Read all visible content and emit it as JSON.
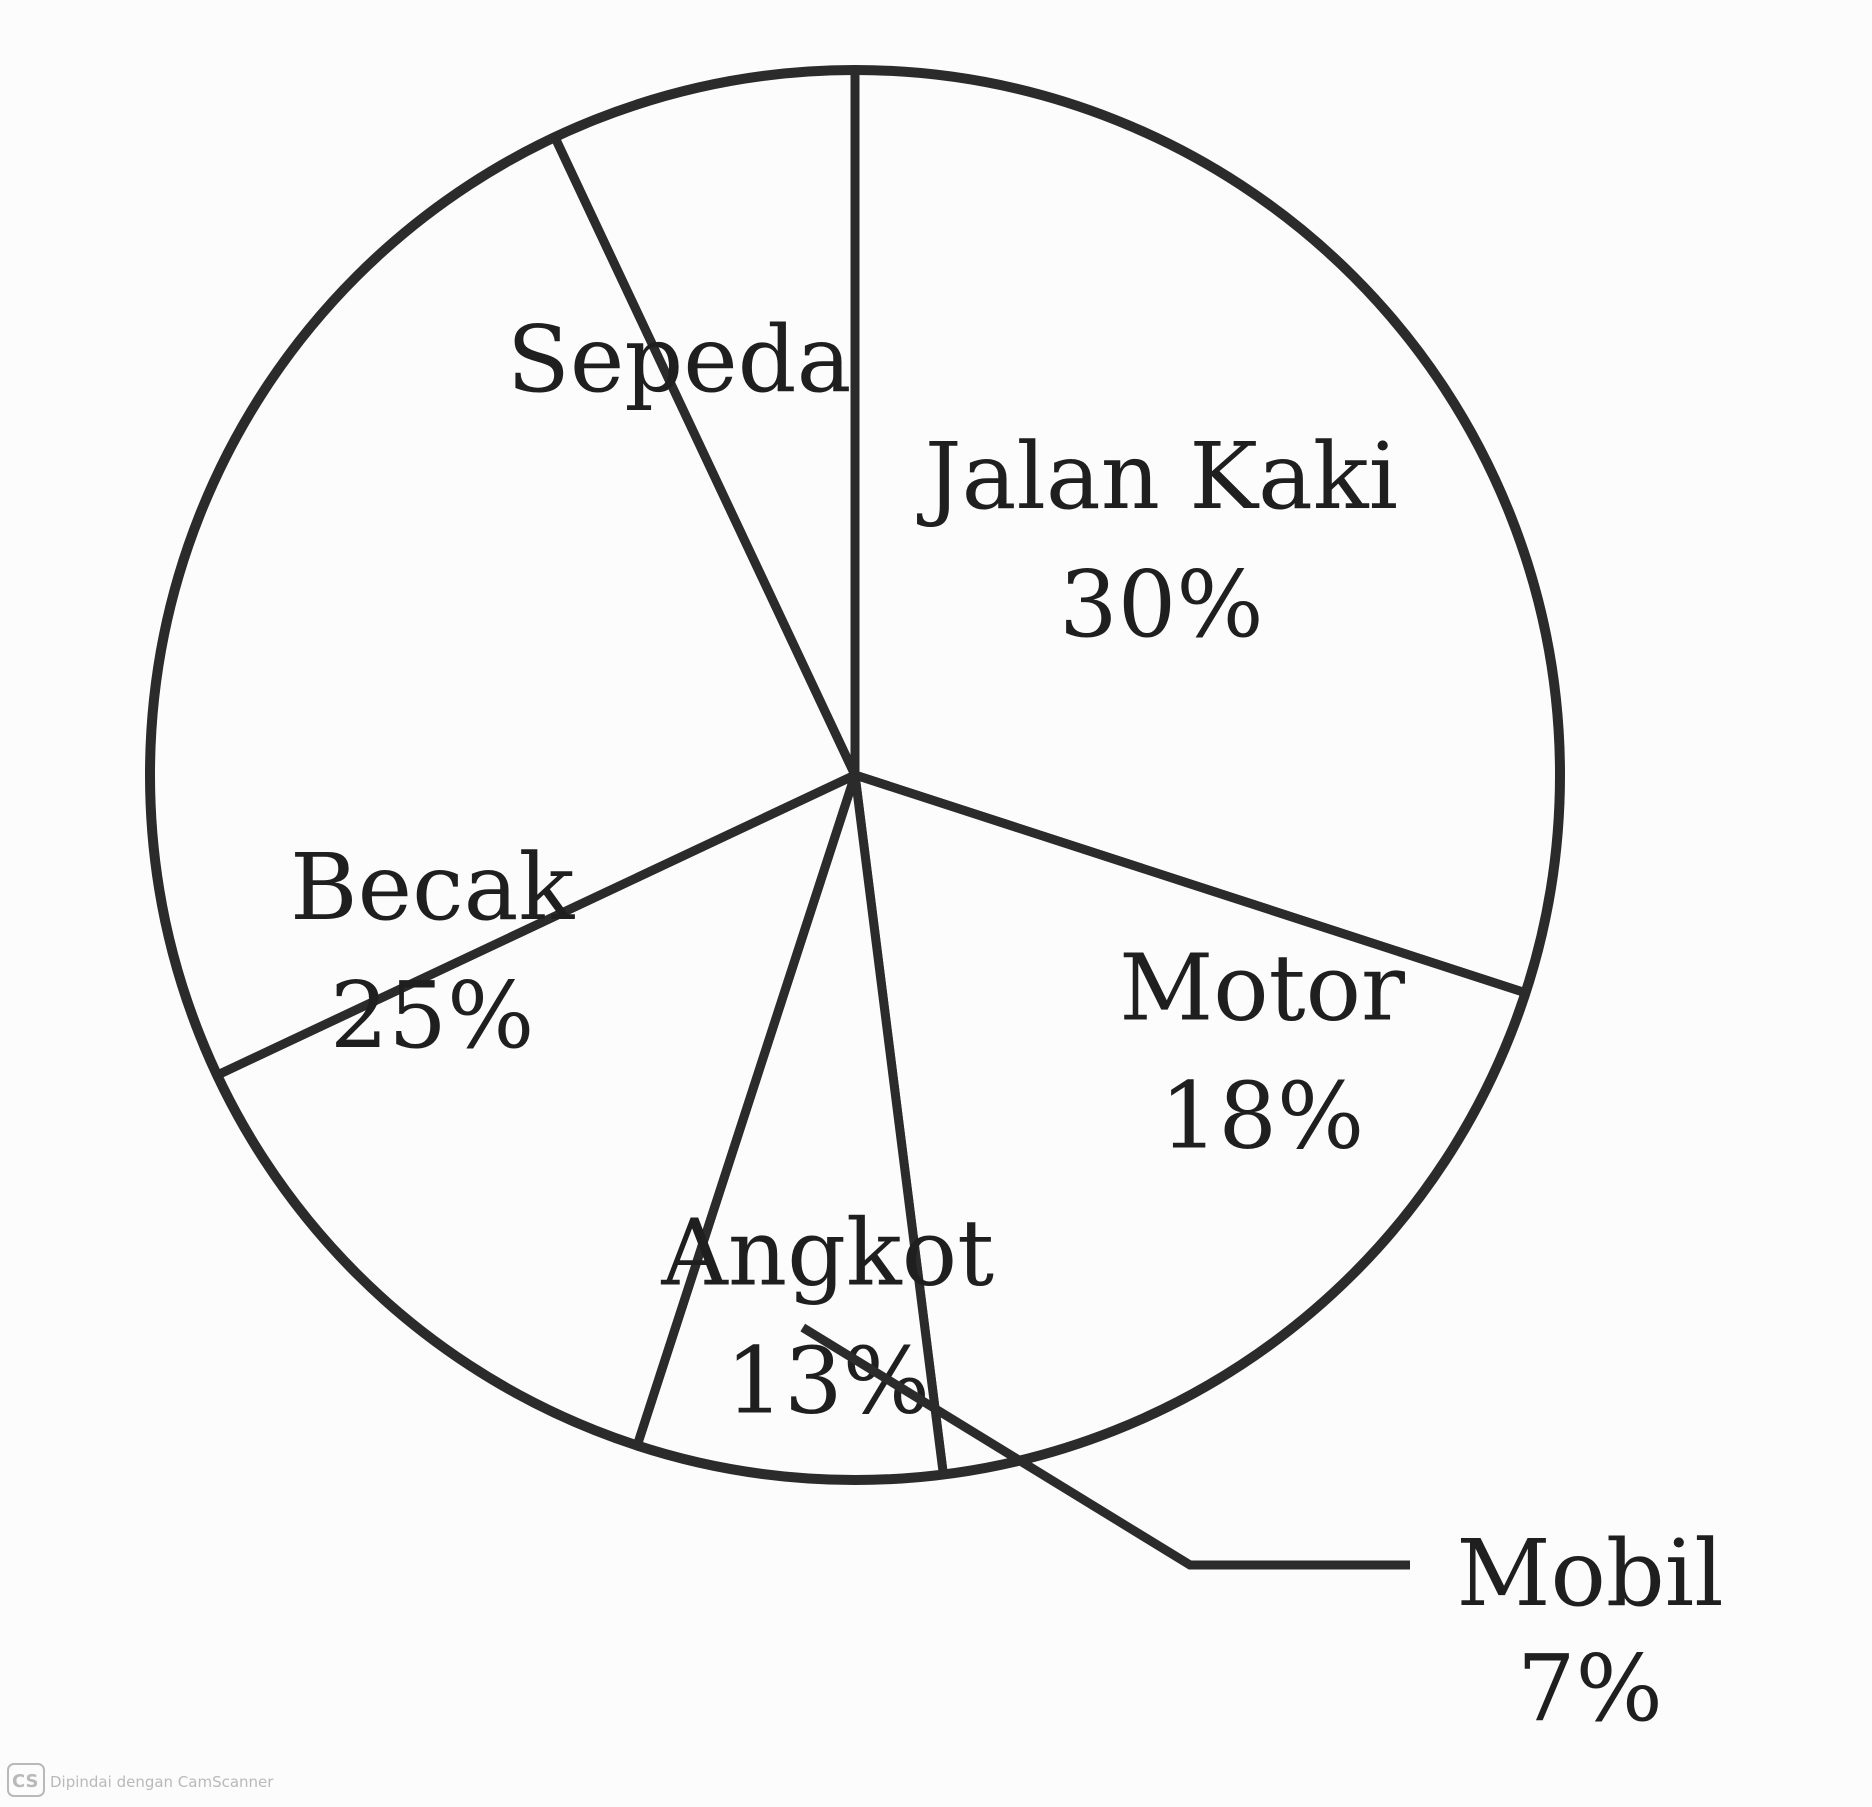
{
  "chart_data": {
    "type": "pie",
    "title": "",
    "start_angle_deg": 0,
    "direction": "clockwise",
    "slices": [
      {
        "label": "Jalan Kaki",
        "value": 30,
        "value_label": "30%",
        "label_position": "inside"
      },
      {
        "label": "Motor",
        "value": 18,
        "value_label": "18%",
        "label_position": "inside"
      },
      {
        "label": "Mobil",
        "value": 7,
        "value_label": "7%",
        "label_position": "outside-callout"
      },
      {
        "label": "Angkot",
        "value": 13,
        "value_label": "13%",
        "label_position": "inside"
      },
      {
        "label": "Becak",
        "value": 25,
        "value_label": "25%",
        "label_position": "inside"
      },
      {
        "label": "Sepeda",
        "value": 7,
        "value_label": "",
        "label_position": "inside"
      }
    ],
    "colors": {
      "fill": "#fdfcfc",
      "stroke": "#2b2b2b",
      "text": "#1f1f1f"
    },
    "legend": "none"
  },
  "watermark": {
    "badge": "CS",
    "text": "Dipindai dengan CamScanner"
  }
}
